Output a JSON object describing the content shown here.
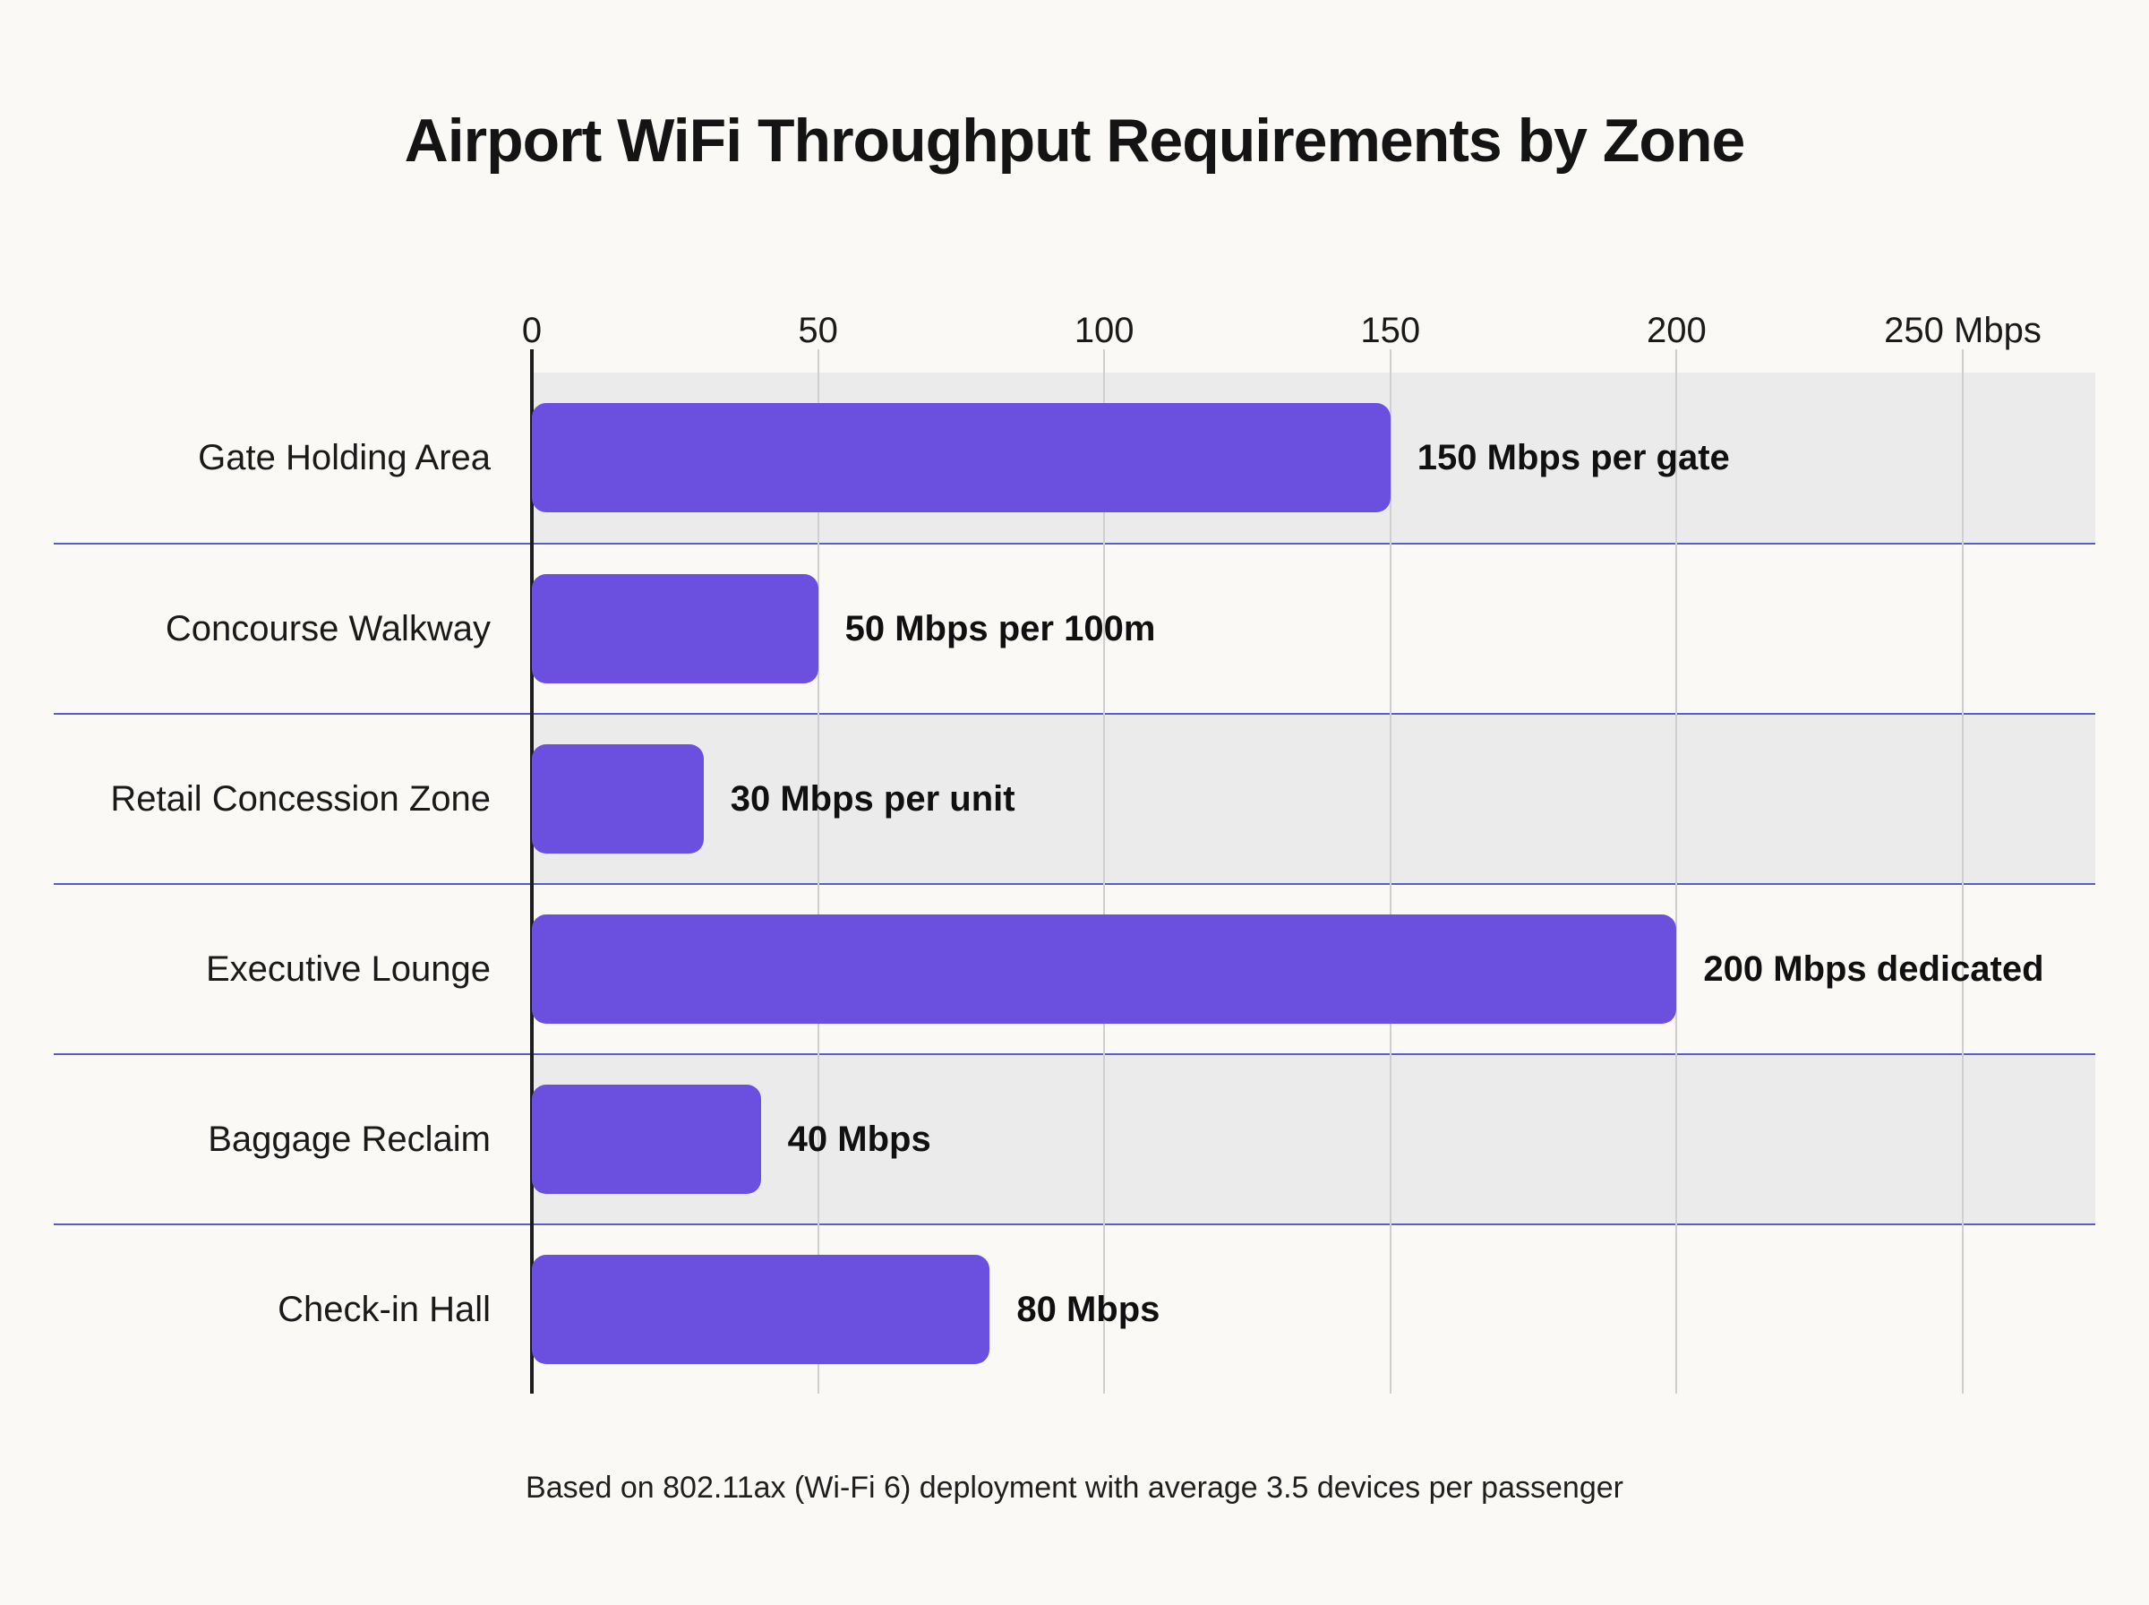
{
  "title": "Airport WiFi Throughput Requirements by Zone",
  "footer": "Based on 802.11ax (Wi-Fi 6) deployment with average 3.5 devices per passenger",
  "colors": {
    "bar": "#6b50e0",
    "band": "#ebebeb",
    "divider": "#5a5ad2",
    "gridline": "#cfcfcf",
    "axis": "#1d1d1d",
    "background": "#faf9f6"
  },
  "chart_data": {
    "type": "bar",
    "orientation": "horizontal",
    "title": "Airport WiFi Throughput Requirements by Zone",
    "categories": [
      "Gate Holding Area",
      "Concourse Walkway",
      "Retail Concession Zone",
      "Executive Lounge",
      "Baggage Reclaim",
      "Check-in Hall"
    ],
    "values": [
      150,
      50,
      30,
      200,
      40,
      80
    ],
    "value_labels": [
      "150 Mbps per gate",
      "50 Mbps per 100m",
      "30 Mbps per unit",
      "200 Mbps dedicated",
      "40 Mbps",
      "80 Mbps"
    ],
    "xlabel": "Mbps",
    "xlim": [
      0,
      250
    ],
    "x_ticks": [
      0,
      50,
      100,
      150,
      200,
      250
    ],
    "x_tick_labels": [
      "0",
      "50",
      "100",
      "150",
      "200",
      "250 Mbps"
    ],
    "grid": true,
    "legend": false,
    "shaded_row_indices": [
      0,
      2,
      4
    ]
  }
}
